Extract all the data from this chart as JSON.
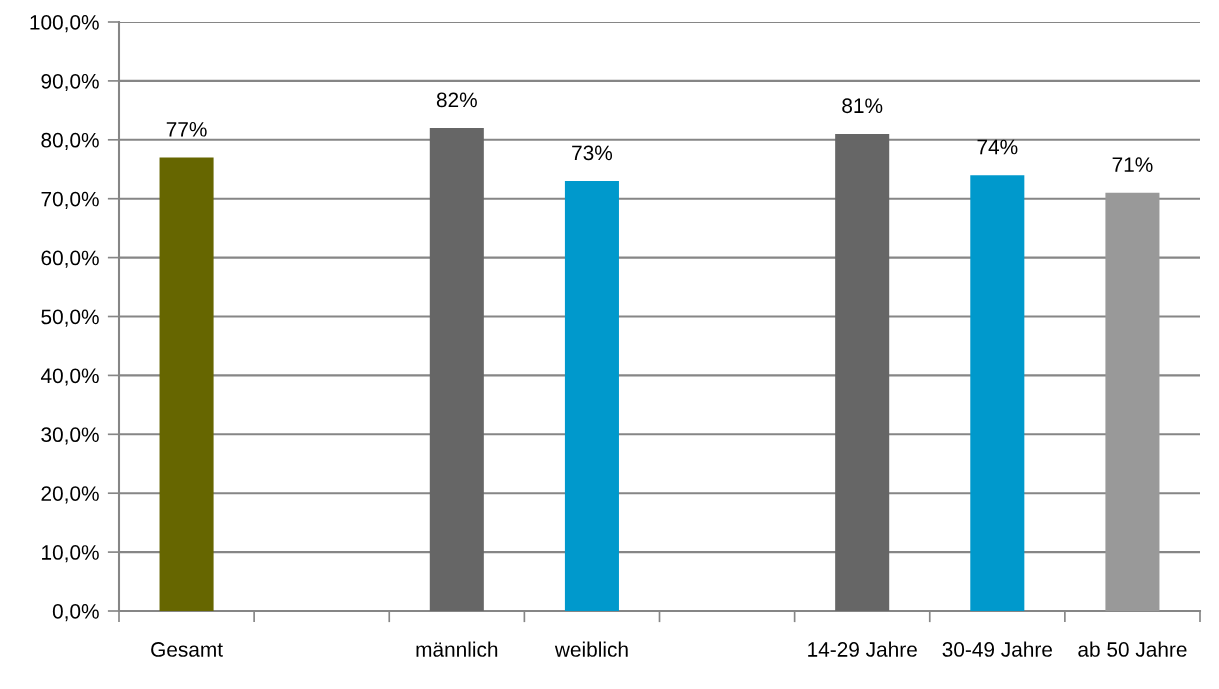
{
  "chart_data": {
    "type": "bar",
    "categories": [
      "Gesamt",
      null,
      "männlich",
      "weiblich",
      null,
      "14-29 Jahre",
      "30-49 Jahre",
      "ab 50 Jahre"
    ],
    "values": [
      77,
      null,
      82,
      73,
      null,
      81,
      74,
      71
    ],
    "colors": [
      "#666600",
      null,
      "#666666",
      "#0099cc",
      null,
      "#666666",
      "#0099cc",
      "#999999"
    ],
    "value_labels": [
      "77%",
      null,
      "82%",
      "73%",
      null,
      "81%",
      "74%",
      "71%"
    ],
    "ylim": [
      0,
      100
    ],
    "yticks": [
      {
        "value": 0,
        "label": "0,0%"
      },
      {
        "value": 10,
        "label": "10,0%"
      },
      {
        "value": 20,
        "label": "20,0%"
      },
      {
        "value": 30,
        "label": "30,0%"
      },
      {
        "value": 40,
        "label": "40,0%"
      },
      {
        "value": 50,
        "label": "50,0%"
      },
      {
        "value": 60,
        "label": "60,0%"
      },
      {
        "value": 70,
        "label": "70,0%"
      },
      {
        "value": 80,
        "label": "80,0%"
      },
      {
        "value": 90,
        "label": "90,0%"
      },
      {
        "value": 100,
        "label": "100,0%"
      }
    ],
    "grid": "y"
  }
}
